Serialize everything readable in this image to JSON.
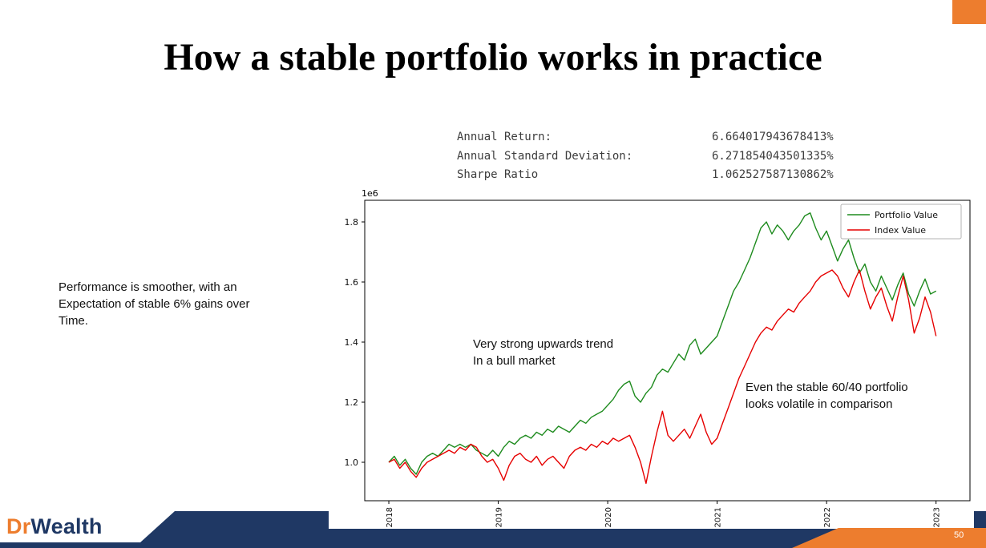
{
  "slide": {
    "title": "How a stable portfolio works in practice",
    "page_number": "50",
    "logo": {
      "prefix": "Dr",
      "suffix": "Wealth"
    }
  },
  "stats": {
    "rows": [
      {
        "label": "Annual Return:",
        "value": "6.664017943678413%"
      },
      {
        "label": "Annual Standard Deviation:",
        "value": "6.271854043501335%"
      },
      {
        "label": "Sharpe Ratio",
        "value": "1.062527587130862%"
      }
    ]
  },
  "left_note": "Performance is smoother, with an\nExpectation of stable 6% gains over\nTime.",
  "annotations": {
    "bull": "Very strong upwards trend\nIn a bull market",
    "volatile": "Even the stable 60/40 portfolio\nlooks volatile in comparison"
  },
  "colors": {
    "navy": "#1f3864",
    "orange": "#ed7d2e",
    "portfolio_green": "#1e8b1e",
    "index_red": "#e60000"
  },
  "chart_data": {
    "type": "line",
    "title": "",
    "xlabel": "",
    "ylabel": "",
    "y_offset_label": "1e6",
    "grid": false,
    "legend_position": "upper right",
    "xlim": [
      2017.78,
      2023.31
    ],
    "ylim": [
      0.872,
      1.872
    ],
    "xticks": [
      2018,
      2019,
      2020,
      2021,
      2022,
      2023
    ],
    "yticks": [
      1.0,
      1.2,
      1.4,
      1.6,
      1.8
    ],
    "x": [
      2018.0,
      2018.05,
      2018.1,
      2018.15,
      2018.2,
      2018.25,
      2018.3,
      2018.35,
      2018.4,
      2018.45,
      2018.5,
      2018.55,
      2018.6,
      2018.65,
      2018.7,
      2018.75,
      2018.8,
      2018.85,
      2018.9,
      2018.95,
      2019.0,
      2019.05,
      2019.1,
      2019.15,
      2019.2,
      2019.25,
      2019.3,
      2019.35,
      2019.4,
      2019.45,
      2019.5,
      2019.55,
      2019.6,
      2019.65,
      2019.7,
      2019.75,
      2019.8,
      2019.85,
      2019.9,
      2019.95,
      2020.0,
      2020.05,
      2020.1,
      2020.15,
      2020.2,
      2020.25,
      2020.3,
      2020.35,
      2020.4,
      2020.45,
      2020.5,
      2020.55,
      2020.6,
      2020.65,
      2020.7,
      2020.75,
      2020.8,
      2020.85,
      2020.9,
      2020.95,
      2021.0,
      2021.05,
      2021.1,
      2021.15,
      2021.2,
      2021.25,
      2021.3,
      2021.35,
      2021.4,
      2021.45,
      2021.5,
      2021.55,
      2021.6,
      2021.65,
      2021.7,
      2021.75,
      2021.8,
      2021.85,
      2021.9,
      2021.95,
      2022.0,
      2022.05,
      2022.1,
      2022.15,
      2022.2,
      2022.25,
      2022.3,
      2022.35,
      2022.4,
      2022.45,
      2022.5,
      2022.55,
      2022.6,
      2022.65,
      2022.7,
      2022.75,
      2022.8,
      2022.85,
      2022.9,
      2022.95,
      2023.0
    ],
    "series": [
      {
        "name": "Portfolio Value",
        "color": "#1e8b1e",
        "values": [
          1.0,
          1.02,
          0.99,
          1.01,
          0.98,
          0.96,
          1.0,
          1.02,
          1.03,
          1.02,
          1.04,
          1.06,
          1.05,
          1.06,
          1.05,
          1.06,
          1.04,
          1.03,
          1.02,
          1.04,
          1.02,
          1.05,
          1.07,
          1.06,
          1.08,
          1.09,
          1.08,
          1.1,
          1.09,
          1.11,
          1.1,
          1.12,
          1.11,
          1.1,
          1.12,
          1.14,
          1.13,
          1.15,
          1.16,
          1.17,
          1.19,
          1.21,
          1.24,
          1.26,
          1.27,
          1.22,
          1.2,
          1.23,
          1.25,
          1.29,
          1.31,
          1.3,
          1.33,
          1.36,
          1.34,
          1.39,
          1.41,
          1.36,
          1.38,
          1.4,
          1.42,
          1.47,
          1.52,
          1.57,
          1.6,
          1.64,
          1.68,
          1.73,
          1.78,
          1.8,
          1.76,
          1.79,
          1.77,
          1.74,
          1.77,
          1.79,
          1.82,
          1.83,
          1.78,
          1.74,
          1.77,
          1.72,
          1.67,
          1.71,
          1.74,
          1.68,
          1.63,
          1.66,
          1.6,
          1.57,
          1.62,
          1.58,
          1.54,
          1.59,
          1.63,
          1.56,
          1.52,
          1.57,
          1.61,
          1.56,
          1.57
        ]
      },
      {
        "name": "Index Value",
        "color": "#e60000",
        "values": [
          1.0,
          1.01,
          0.98,
          1.0,
          0.97,
          0.95,
          0.98,
          1.0,
          1.01,
          1.02,
          1.03,
          1.04,
          1.03,
          1.05,
          1.04,
          1.06,
          1.05,
          1.02,
          1.0,
          1.01,
          0.98,
          0.94,
          0.99,
          1.02,
          1.03,
          1.01,
          1.0,
          1.02,
          0.99,
          1.01,
          1.02,
          1.0,
          0.98,
          1.02,
          1.04,
          1.05,
          1.04,
          1.06,
          1.05,
          1.07,
          1.06,
          1.08,
          1.07,
          1.08,
          1.09,
          1.05,
          1.0,
          0.93,
          1.02,
          1.1,
          1.17,
          1.09,
          1.07,
          1.09,
          1.11,
          1.08,
          1.12,
          1.16,
          1.1,
          1.06,
          1.08,
          1.13,
          1.18,
          1.23,
          1.28,
          1.32,
          1.36,
          1.4,
          1.43,
          1.45,
          1.44,
          1.47,
          1.49,
          1.51,
          1.5,
          1.53,
          1.55,
          1.57,
          1.6,
          1.62,
          1.63,
          1.64,
          1.62,
          1.58,
          1.55,
          1.6,
          1.64,
          1.57,
          1.51,
          1.55,
          1.58,
          1.52,
          1.47,
          1.55,
          1.62,
          1.54,
          1.43,
          1.48,
          1.55,
          1.5,
          1.42
        ]
      }
    ]
  }
}
